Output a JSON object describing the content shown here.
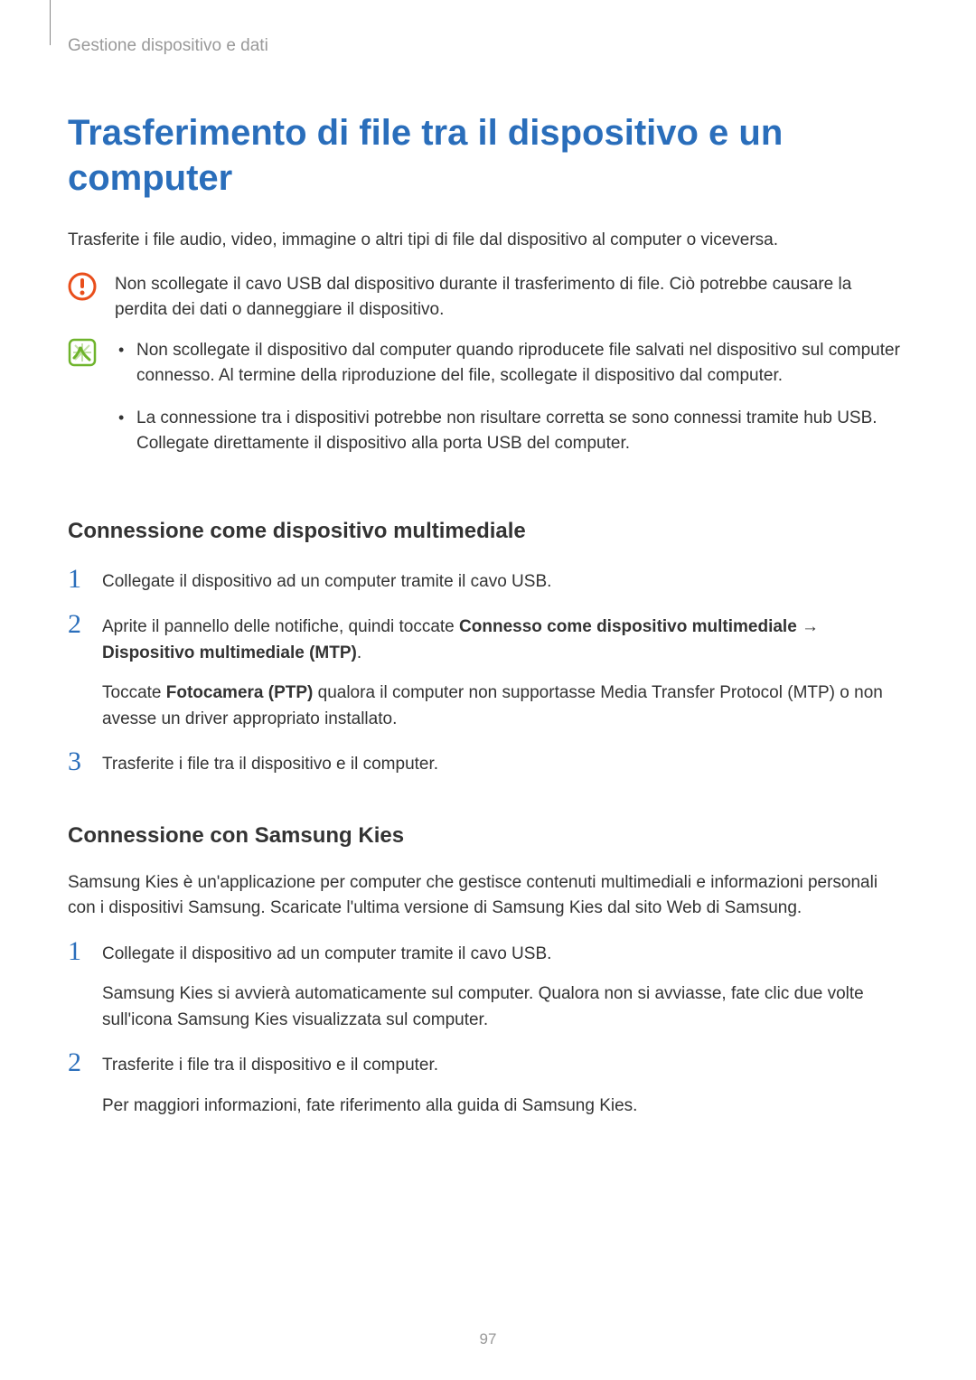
{
  "breadcrumb": "Gestione dispositivo e dati",
  "main_title": "Trasferimento di file tra il dispositivo e un computer",
  "intro_text": "Trasferite i file audio, video, immagine o altri tipi di file dal dispositivo al computer o viceversa.",
  "warning_callout": {
    "text": "Non scollegate il cavo USB dal dispositivo durante il trasferimento di file. Ciò potrebbe causare la perdita dei dati o danneggiare il dispositivo."
  },
  "note_callout": {
    "items": [
      "Non scollegate il dispositivo dal computer quando riproducete file salvati nel dispositivo sul computer connesso. Al termine della riproduzione del file, scollegate il dispositivo dal computer.",
      "La connessione tra i dispositivi potrebbe non risultare corretta se sono connessi tramite hub USB. Collegate direttamente il dispositivo alla porta USB del computer."
    ]
  },
  "section1": {
    "title": "Connessione come dispositivo multimediale",
    "steps": [
      {
        "number": "1",
        "text": "Collegate il dispositivo ad un computer tramite il cavo USB."
      },
      {
        "number": "2",
        "html": "Aprite il pannello delle notifiche, quindi toccate <strong>Connesso come dispositivo multimediale</strong> → <strong>Dispositivo multimediale (MTP)</strong>.",
        "extra_html": "Toccate <strong>Fotocamera (PTP)</strong> qualora il computer non supportasse Media Transfer Protocol (MTP) o non avesse un driver appropriato installato."
      },
      {
        "number": "3",
        "text": "Trasferite i file tra il dispositivo e il computer."
      }
    ]
  },
  "section2": {
    "title": "Connessione con Samsung Kies",
    "intro": "Samsung Kies è un'applicazione per computer che gestisce contenuti multimediali e informazioni personali con i dispositivi Samsung. Scaricate l'ultima versione di Samsung Kies dal sito Web di Samsung.",
    "steps": [
      {
        "number": "1",
        "text": "Collegate il dispositivo ad un computer tramite il cavo USB.",
        "extra": "Samsung Kies si avvierà automaticamente sul computer. Qualora non si avviasse, fate clic due volte sull'icona Samsung Kies visualizzata sul computer."
      },
      {
        "number": "2",
        "text": "Trasferite i file tra il dispositivo e il computer.",
        "extra": "Per maggiori informazioni, fate riferimento alla guida di Samsung Kies."
      }
    ]
  },
  "page_number": "97",
  "colors": {
    "title_blue": "#2a6ebb",
    "step_number_blue": "#2a6ebb",
    "text_dark": "#333333",
    "breadcrumb_gray": "#999999",
    "warning_orange": "#e94e1b",
    "note_green": "#6fb42c"
  }
}
